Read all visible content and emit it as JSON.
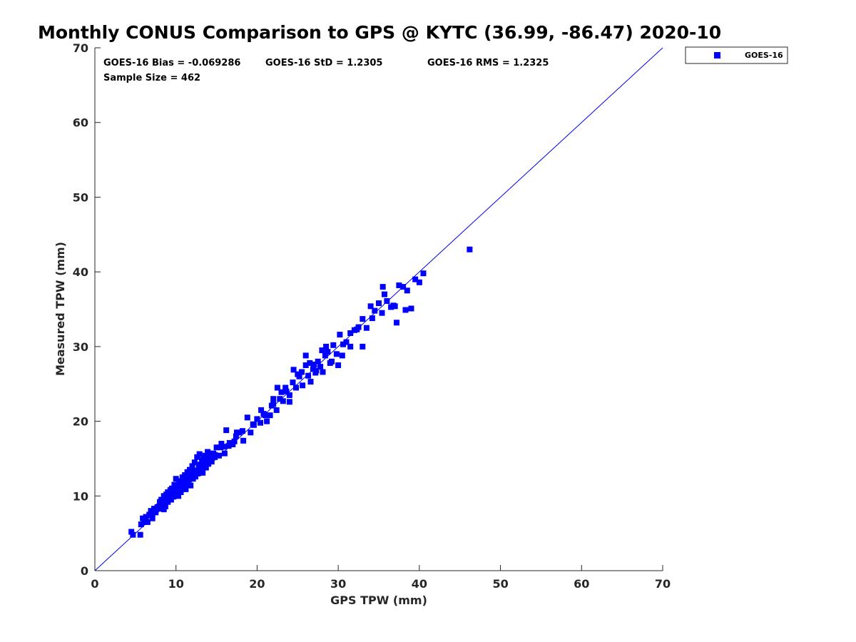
{
  "chart_data": {
    "type": "scatter",
    "title": "Monthly CONUS Comparison to GPS @ KYTC (36.99, -86.47) 2020-10",
    "xlabel": "GPS TPW (mm)",
    "ylabel": "Measured TPW (mm)",
    "xlim": [
      0,
      70
    ],
    "ylim": [
      0,
      70
    ],
    "xticks": [
      "0",
      "10",
      "20",
      "30",
      "40",
      "50",
      "60",
      "70"
    ],
    "yticks": [
      "0",
      "10",
      "20",
      "30",
      "40",
      "50",
      "60",
      "70"
    ],
    "grid": false,
    "legend_position": "top-right outside",
    "reference_line": {
      "from": [
        0,
        0
      ],
      "to": [
        70,
        70
      ],
      "color": "#0000ee"
    },
    "stats": {
      "bias": "GOES-16 Bias = -0.069286",
      "std": "GOES-16 StD = 1.2305",
      "rms": "GOES-16 RMS = 1.2325",
      "sample": "Sample Size = 462"
    },
    "series": [
      {
        "name": "GOES-16",
        "color": "#0000ff",
        "marker": "square",
        "x": [
          4.5,
          4.7,
          5.6,
          5.7,
          5.9,
          6.1,
          6.3,
          6.5,
          6.7,
          6.9,
          7.0,
          7.1,
          7.3,
          7.5,
          7.7,
          7.9,
          8.0,
          8.1,
          8.2,
          8.3,
          8.4,
          8.5,
          8.6,
          8.7,
          8.8,
          8.9,
          9.0,
          9.1,
          9.2,
          9.3,
          9.4,
          9.5,
          9.6,
          9.7,
          9.8,
          9.9,
          10.0,
          10.1,
          10.2,
          10.3,
          10.4,
          10.5,
          10.6,
          10.7,
          10.8,
          10.9,
          11.0,
          11.1,
          11.2,
          11.3,
          11.4,
          11.5,
          11.6,
          11.7,
          11.8,
          11.9,
          12.0,
          12.1,
          12.2,
          12.3,
          12.4,
          12.5,
          12.6,
          12.7,
          12.8,
          12.9,
          13.0,
          13.1,
          13.2,
          13.3,
          13.4,
          13.5,
          13.6,
          13.7,
          13.8,
          13.9,
          14.0,
          14.2,
          14.4,
          14.6,
          14.8,
          15.0,
          15.3,
          15.6,
          15.9,
          16.2,
          16.6,
          17.0,
          17.4,
          17.8,
          18.3,
          18.8,
          19.2,
          19.6,
          20.0,
          20.4,
          20.8,
          21.2,
          21.6,
          22.0,
          22.4,
          22.8,
          23.2,
          23.6,
          24.0,
          24.4,
          24.8,
          25.2,
          25.6,
          26.0,
          26.3,
          26.6,
          26.9,
          27.2,
          27.5,
          27.8,
          28.1,
          28.4,
          28.7,
          29.0,
          29.4,
          29.8,
          30.2,
          30.6,
          31.0,
          31.5,
          32.0,
          32.5,
          33.0,
          33.5,
          34.0,
          34.5,
          35.0,
          35.4,
          35.7,
          36.0,
          36.5,
          37.0,
          37.5,
          38.0,
          38.5,
          39.0,
          39.5,
          40.0,
          40.5,
          46.2,
          8.5,
          9.1,
          10.2,
          11.6,
          12.3,
          13.4,
          14.1,
          16.0,
          18.2,
          22.0,
          23.5,
          25.0,
          26.0,
          27.0,
          28.5,
          30.0,
          31.5,
          33.0,
          35.5,
          36.8,
          37.2,
          38.3,
          29.2,
          24.5,
          22.5,
          20.5,
          19.5,
          17.5,
          15.5,
          13.8,
          12.6,
          11.8,
          10.9,
          9.8,
          9.0,
          8.2,
          7.6,
          6.8,
          21.0,
          24.0,
          27.3,
          28.0,
          30.5,
          32.3,
          34.2,
          26.5,
          25.5,
          23.0,
          21.8,
          17.2,
          16.5,
          14.8,
          13.0,
          12.0,
          11.2,
          10.4,
          9.5,
          8.7
        ],
        "y": [
          5.2,
          4.8,
          4.8,
          6.2,
          7.0,
          6.5,
          7.2,
          6.5,
          7.5,
          8.0,
          7.6,
          7.0,
          8.3,
          7.8,
          8.5,
          8.6,
          9.2,
          8.3,
          9.5,
          9.0,
          8.8,
          10.0,
          9.3,
          8.6,
          10.2,
          9.6,
          9.2,
          10.4,
          9.8,
          10.8,
          9.5,
          11.0,
          10.3,
          9.9,
          11.5,
          10.6,
          12.3,
          10.8,
          11.3,
          10.0,
          11.8,
          12.0,
          10.5,
          11.3,
          12.5,
          11.0,
          11.7,
          12.8,
          10.9,
          12.2,
          13.2,
          11.6,
          12.4,
          13.5,
          11.4,
          12.8,
          14.0,
          12.3,
          13.2,
          14.5,
          12.6,
          13.4,
          15.2,
          13.0,
          13.9,
          15.6,
          13.4,
          14.2,
          14.8,
          13.1,
          15.0,
          14.0,
          15.4,
          13.8,
          14.6,
          15.9,
          14.3,
          15.1,
          14.6,
          15.7,
          15.2,
          16.5,
          15.4,
          17.0,
          16.6,
          18.8,
          17.1,
          16.9,
          18.0,
          18.5,
          17.4,
          20.5,
          18.5,
          19.5,
          20.3,
          19.8,
          21.0,
          20.0,
          20.8,
          22.3,
          21.5,
          23.0,
          22.7,
          24.0,
          23.5,
          25.2,
          24.5,
          26.0,
          24.8,
          27.5,
          26.1,
          25.3,
          27.0,
          26.5,
          28.0,
          27.3,
          26.6,
          28.8,
          29.3,
          27.8,
          30.2,
          29.0,
          31.6,
          30.3,
          30.6,
          31.8,
          32.2,
          32.6,
          33.7,
          32.5,
          35.4,
          34.8,
          35.8,
          34.5,
          37.0,
          36.1,
          35.3,
          35.4,
          38.2,
          38.0,
          37.5,
          35.1,
          39.0,
          38.6,
          39.8,
          43.0,
          8.2,
          9.8,
          10.5,
          12.2,
          12.8,
          14.0,
          15.5,
          15.7,
          18.7,
          23.0,
          24.5,
          26.3,
          28.8,
          27.6,
          30.0,
          27.5,
          30.0,
          30.0,
          38.0,
          35.5,
          33.2,
          34.9,
          28.0,
          26.9,
          24.5,
          21.5,
          19.6,
          18.5,
          16.5,
          15.2,
          13.4,
          12.9,
          12.2,
          11.0,
          10.5,
          9.4,
          8.3,
          7.4,
          20.8,
          22.6,
          26.8,
          29.5,
          28.8,
          32.3,
          33.8,
          27.8,
          26.6,
          23.9,
          22.1,
          17.3,
          16.7,
          15.5,
          14.2,
          13.6,
          12.4,
          11.7,
          10.7,
          9.7
        ]
      }
    ]
  }
}
